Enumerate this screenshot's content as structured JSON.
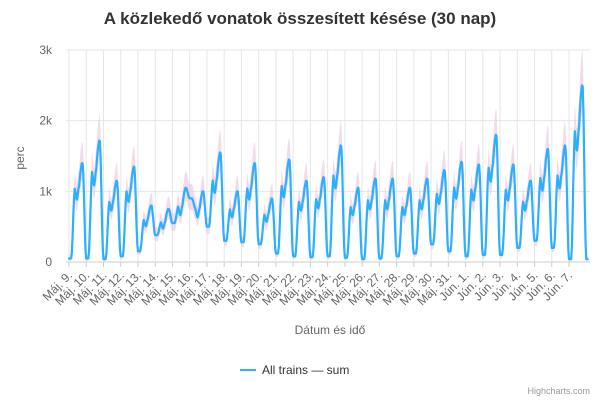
{
  "chart_data": {
    "type": "line",
    "title": "A közlekedő vonatok összesített késése (30 nap)",
    "xlabel": "Dátum és idő",
    "ylabel": "perc",
    "ylim": [
      0,
      3000
    ],
    "yticks": [
      {
        "value": 0,
        "label": "0"
      },
      {
        "value": 1000,
        "label": "1k"
      },
      {
        "value": 2000,
        "label": "2k"
      },
      {
        "value": 3000,
        "label": "3k"
      }
    ],
    "categories": [
      "Máj. 9.",
      "Máj. 10.",
      "Máj. 11.",
      "Máj. 12.",
      "Máj. 13.",
      "Máj. 14.",
      "Máj. 15.",
      "Máj. 16.",
      "Máj. 17.",
      "Máj. 18.",
      "Máj. 19.",
      "Máj. 20.",
      "Máj. 21.",
      "Máj. 22.",
      "Máj. 23.",
      "Máj. 24.",
      "Máj. 25.",
      "Máj. 26.",
      "Máj. 27.",
      "Máj. 28.",
      "Máj. 29.",
      "Máj. 30.",
      "Máj. 31.",
      "Jún. 1.",
      "Jún. 2.",
      "Jún. 3.",
      "Jún. 4.",
      "Jún. 5.",
      "Jún. 6.",
      "Jún. 7."
    ],
    "grid": true,
    "legend_position": "bottom-center",
    "series": [
      {
        "name": "All trains — sum",
        "color": "#2caffe",
        "band_color": "#e8c4e0",
        "daily_peaks": [
          1400,
          1720,
          1150,
          1350,
          800,
          750,
          1050,
          1000,
          1550,
          1000,
          1400,
          900,
          1450,
          1150,
          1200,
          1650,
          1050,
          1180,
          1180,
          1050,
          1180,
          1300,
          1420,
          1380,
          1800,
          1380,
          1150,
          1600,
          1650,
          2500,
          300
        ],
        "daily_mins": [
          50,
          50,
          40,
          80,
          150,
          380,
          550,
          900,
          500,
          300,
          280,
          250,
          120,
          80,
          70,
          80,
          60,
          40,
          50,
          80,
          120,
          250,
          150,
          80,
          100,
          100,
          200,
          300,
          200,
          40,
          40
        ]
      }
    ]
  },
  "credits": "Highcharts.com"
}
